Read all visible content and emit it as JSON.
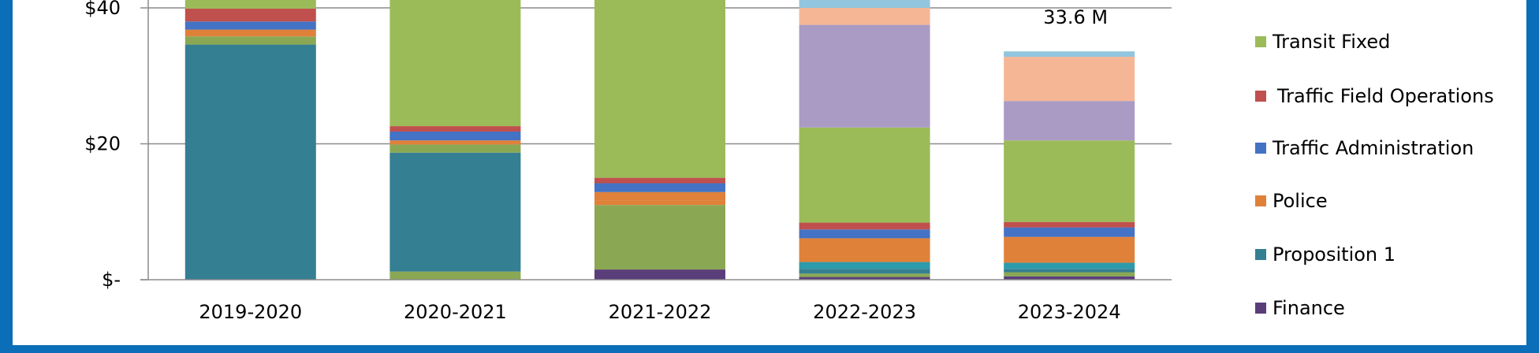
{
  "colors": {
    "frame": "#0b6eb8",
    "grid": "#8c8c8c",
    "axis": "#8c8c8c"
  },
  "chart_data": {
    "type": "bar",
    "stacked": true,
    "title": "",
    "xlabel": "",
    "ylabel": "",
    "categories": [
      "2019-2020",
      "2020-2021",
      "2021-2022",
      "2022-2023",
      "2023-2024"
    ],
    "ylim": [
      0,
      41.5
    ],
    "yticks": [
      {
        "value": 0,
        "label": "$-"
      },
      {
        "value": 20,
        "label": "$20"
      },
      {
        "value": 40,
        "label": "$40"
      }
    ],
    "grid": true,
    "legend_position": "right",
    "annotations": [
      {
        "category": "2023-2024",
        "text": "33.6 M"
      }
    ],
    "series": [
      {
        "name": "Finance",
        "color": "#5a3e7a",
        "values": [
          0,
          0,
          1.5,
          0.4,
          0.5
        ]
      },
      {
        "key": "s_olive",
        "color": "#8aa854",
        "values": [
          0,
          1.2,
          9.5,
          0.5,
          0.6
        ]
      },
      {
        "name": "Proposition 1",
        "color": "#357f93",
        "values": [
          34.6,
          17.5,
          0,
          0.7,
          0.5
        ]
      },
      {
        "key": "s_teal2",
        "color": "#2d9bab",
        "values": [
          0,
          0,
          0,
          1.0,
          0.9
        ]
      },
      {
        "key": "s_olive2",
        "color": "#8aa854",
        "values": [
          1.2,
          1.2,
          0,
          0,
          0
        ]
      },
      {
        "name": "Police",
        "color": "#e0813a",
        "values": [
          1.0,
          0.6,
          0.7,
          3.5,
          3.8
        ]
      },
      {
        "key": "s_orange2",
        "color": "#e0813a",
        "values": [
          0,
          0,
          1.2,
          0,
          0
        ]
      },
      {
        "name": "Traffic Administration",
        "color": "#4472c4",
        "values": [
          1.2,
          1.3,
          1.3,
          1.3,
          1.4
        ]
      },
      {
        "name": "Traffic Field Operations",
        "color": "#c0504d",
        "values": [
          1.9,
          0.8,
          0.8,
          1.0,
          0.8
        ]
      },
      {
        "name": "Transit Fixed",
        "color": "#9bbb59",
        "values": [
          2.0,
          20.0,
          30.0,
          14.0,
          12.0
        ]
      },
      {
        "key": "s_purple",
        "color": "#a99bc4",
        "values": [
          0,
          0,
          0,
          15.1,
          5.8
        ]
      },
      {
        "key": "s_peach",
        "color": "#f5b695",
        "values": [
          0,
          0,
          0,
          2.5,
          6.5
        ]
      },
      {
        "key": "s_lightblue",
        "color": "#92c5de",
        "values": [
          0,
          0,
          0,
          1.8,
          0.8
        ]
      }
    ]
  }
}
